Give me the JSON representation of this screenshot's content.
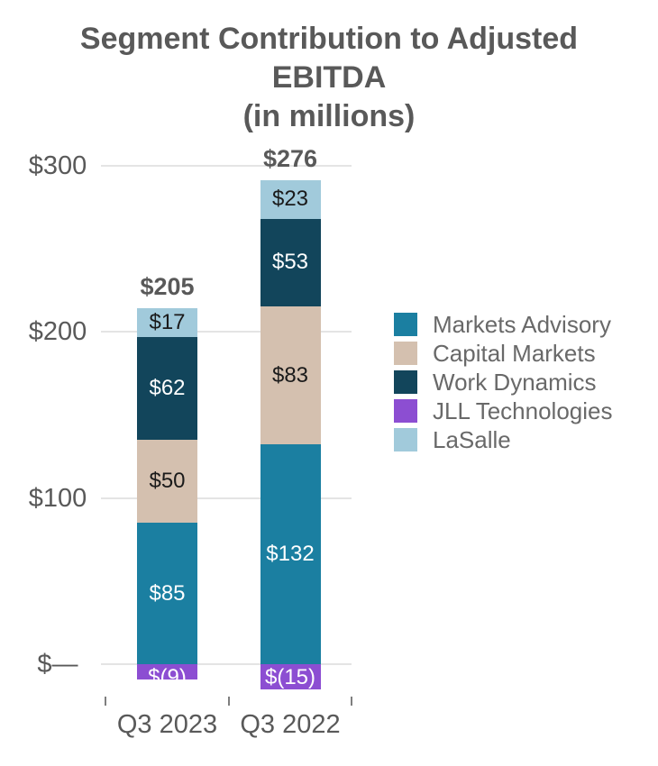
{
  "title": {
    "line1": "Segment Contribution to Adjusted",
    "line2": "EBITDA",
    "line3": "(in millions)"
  },
  "palette": {
    "background": "#ffffff",
    "title_text": "#595959",
    "axis_text": "#595959",
    "legend_text": "#696969",
    "gridline": "#e4e4e4",
    "tick_mark": "#7f7f7f"
  },
  "chart_data": {
    "type": "bar",
    "stacked": true,
    "title": "Segment Contribution to Adjusted EBITDA (in millions)",
    "categories": [
      "Q3 2023",
      "Q3 2022"
    ],
    "series": [
      {
        "name": "Markets Advisory",
        "color": "#1b7fa1",
        "label_color": "#ffffff",
        "values": [
          85,
          132
        ],
        "labels": [
          "$85",
          "$132"
        ]
      },
      {
        "name": "Capital Markets",
        "color": "#d4c0af",
        "label_color": "#1a1a1a",
        "values": [
          50,
          83
        ],
        "labels": [
          "$50",
          "$83"
        ]
      },
      {
        "name": "Work Dynamics",
        "color": "#12455b",
        "label_color": "#ffffff",
        "values": [
          62,
          53
        ],
        "labels": [
          "$62",
          "$53"
        ]
      },
      {
        "name": "JLL Technologies",
        "color": "#8c4ed2",
        "label_color": "#ffffff",
        "values": [
          -9,
          -15
        ],
        "labels": [
          "$(9)",
          "$(15)"
        ]
      },
      {
        "name": "LaSalle",
        "color": "#a1cadb",
        "label_color": "#1a1a1a",
        "values": [
          17,
          23
        ],
        "labels": [
          "$17",
          "$23"
        ]
      }
    ],
    "totals": {
      "values": [
        205,
        276
      ],
      "labels": [
        "$205",
        "$276"
      ]
    },
    "y_axis": {
      "ticks": [
        {
          "value": 300,
          "label": "$300"
        },
        {
          "value": 200,
          "label": "$200"
        },
        {
          "value": 100,
          "label": "$100"
        },
        {
          "value": 0,
          "label": "$—"
        }
      ],
      "range": [
        -20,
        300
      ]
    },
    "grid": true,
    "legend_position": "right"
  }
}
